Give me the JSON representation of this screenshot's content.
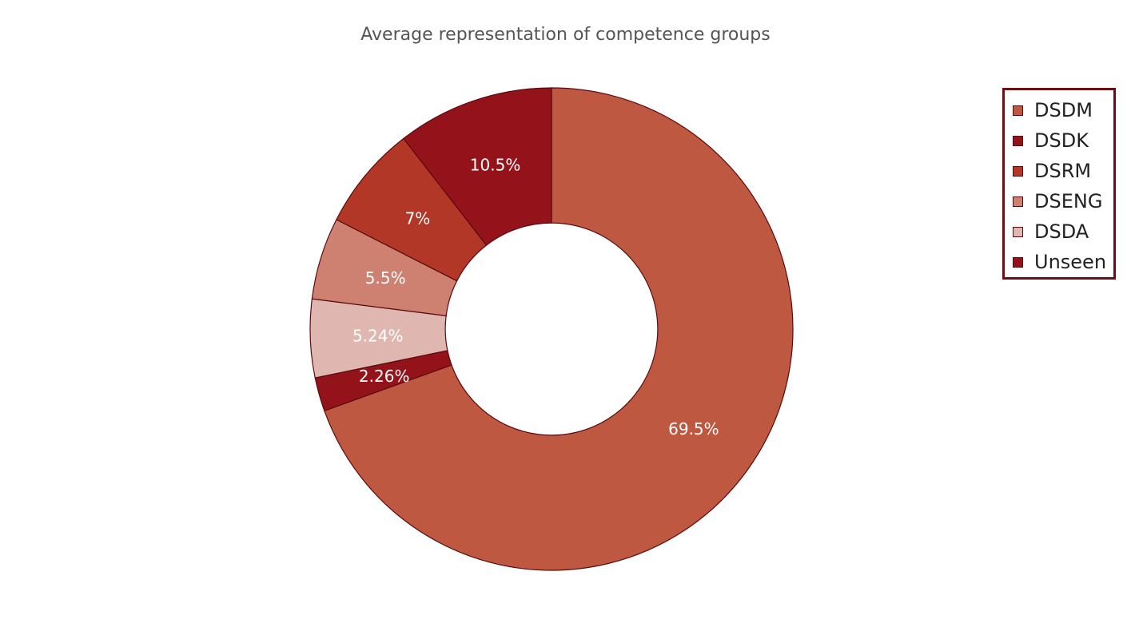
{
  "chart_data": {
    "type": "pie",
    "hole": 0.44,
    "title": "Average representation of competence groups",
    "labels": [
      "DSDM",
      "DSDK",
      "DSRM",
      "DSENG",
      "DSDA",
      "Unseen"
    ],
    "values": [
      69.5,
      2.26,
      5.24,
      5.5,
      7,
      10.5
    ],
    "value_labels": [
      "69.5%",
      "2.26%",
      "5.24%",
      "5.5%",
      "7%",
      "10.5%"
    ],
    "slice_legend_index": [
      0,
      1,
      4,
      3,
      2,
      5
    ],
    "legend": [
      {
        "label": "DSDM",
        "color": "#bf5840"
      },
      {
        "label": "DSDK",
        "color": "#94131b"
      },
      {
        "label": "DSRM",
        "color": "#b33726"
      },
      {
        "label": "DSENG",
        "color": "#cf8171"
      },
      {
        "label": "DSDA",
        "color": "#dfb7b0"
      },
      {
        "label": "Unseen",
        "color": "#94131b"
      }
    ],
    "legend_placement": "top-right",
    "border_color": "#5a0a0e"
  }
}
